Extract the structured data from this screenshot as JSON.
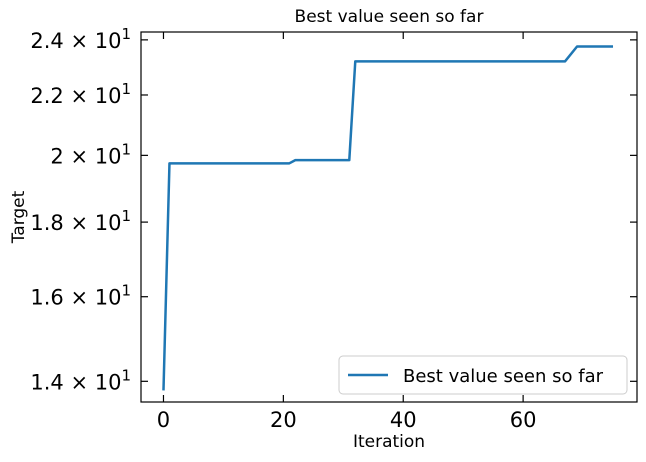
{
  "chart_data": {
    "type": "line",
    "title": "Best value seen so far",
    "xlabel": "Iteration",
    "ylabel": "Target",
    "yscale": "log",
    "xlim": [
      -3.75,
      79.0
    ],
    "ylim": [
      13.55,
      24.3
    ],
    "x_ticks": [
      0,
      20,
      40,
      60
    ],
    "x_tick_labels": [
      "0",
      "20",
      "40",
      "60"
    ],
    "y_major_ticks": [
      14,
      16,
      18,
      20,
      22,
      24
    ],
    "y_tick_labels": [
      {
        "mantissa": "1.4",
        "exponent": "1"
      },
      {
        "mantissa": "1.6",
        "exponent": "1"
      },
      {
        "mantissa": "1.8",
        "exponent": "1"
      },
      {
        "mantissa": "2",
        "exponent": "1"
      },
      {
        "mantissa": "2.2",
        "exponent": "1"
      },
      {
        "mantissa": "2.4",
        "exponent": "1"
      }
    ],
    "y_tick_base": "10",
    "y_tick_separator": "×",
    "grid": false,
    "legend_position": "lower-right",
    "series": [
      {
        "name": "Best value seen so far",
        "color": "#1f77b4",
        "x": [
          0,
          1,
          21,
          22,
          31,
          32,
          67,
          69,
          75
        ],
        "y": [
          13.8,
          19.75,
          19.75,
          19.85,
          19.85,
          23.2,
          23.2,
          23.75,
          23.75
        ]
      }
    ]
  }
}
